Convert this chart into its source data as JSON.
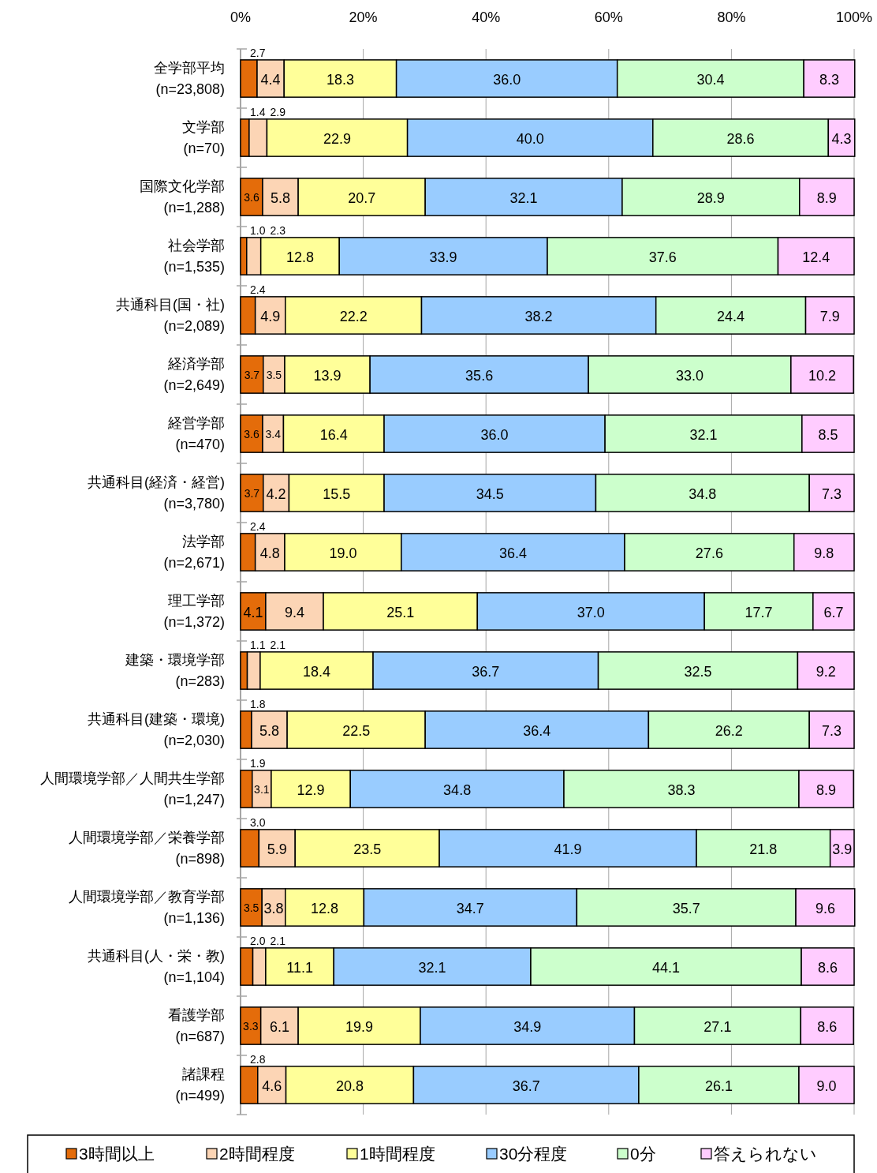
{
  "chart_data": {
    "type": "bar",
    "orientation": "horizontal",
    "stacked": true,
    "grid": "x",
    "legend": "bottom",
    "categories": [
      "全学部平均\n(n=23,808)",
      "文学部\n(n=70)",
      "国際文化学部\n(n=1,288)",
      "社会学部\n(n=1,535)",
      "共通科目(国・社)\n(n=2,089)",
      "経済学部\n(n=2,649)",
      "経営学部\n(n=470)",
      "共通科目(経済・経営)\n(n=3,780)",
      "法学部\n(n=2,671)",
      "理工学部\n(n=1,372)",
      "建築・環境学部\n(n=283)",
      "共通科目(建築・環境)\n(n=2,030)",
      "人間環境学部／人間共生学部\n(n=1,247)",
      "人間環境学部／栄養学部\n(n=898)",
      "人間環境学部／教育学部\n(n=1,136)",
      "共通科目(人・栄・教)\n(n=1,104)",
      "看護学部\n(n=687)",
      "諸課程\n(n=499)"
    ],
    "xlim": [
      0,
      100
    ],
    "xticks": [
      {
        "value": 0,
        "label": "0%"
      },
      {
        "value": 20,
        "label": "20%"
      },
      {
        "value": 40,
        "label": "40%"
      },
      {
        "value": 60,
        "label": "60%"
      },
      {
        "value": 80,
        "label": "80%"
      },
      {
        "value": 100,
        "label": "100%"
      }
    ],
    "series": [
      {
        "name": "3時間以上",
        "color": "#e46c0a",
        "values": [
          2.7,
          1.4,
          3.6,
          1.0,
          2.4,
          3.7,
          3.6,
          3.7,
          2.4,
          4.1,
          1.1,
          1.8,
          1.9,
          3.0,
          3.5,
          2.0,
          3.3,
          2.8
        ],
        "value_labels": [
          "2.7",
          "1.4",
          "3.6",
          "1.0",
          "2.4",
          "3.7",
          "3.6",
          "3.7",
          "2.4",
          "4.1",
          "1.1",
          "1.8",
          "1.9",
          "3.0",
          "3.5",
          "2.0",
          "3.3",
          "2.8"
        ]
      },
      {
        "name": "2時間程度",
        "color": "#fcd5b5",
        "values": [
          4.4,
          2.9,
          5.8,
          2.3,
          4.9,
          3.5,
          3.4,
          4.2,
          4.8,
          9.4,
          2.1,
          5.8,
          3.1,
          5.9,
          3.8,
          2.1,
          6.1,
          4.6
        ],
        "value_labels": [
          "4.4",
          "2.9",
          "5.8",
          "2.3",
          "4.9",
          "3.5",
          "3.4",
          "4.2",
          "4.8",
          "9.4",
          "2.1",
          "5.8",
          "3.1",
          "5.9",
          "3.8",
          "2.1",
          "6.1",
          "4.6"
        ]
      },
      {
        "name": "1時間程度",
        "color": "#ffff99",
        "values": [
          18.3,
          22.9,
          20.7,
          12.8,
          22.2,
          13.9,
          16.4,
          15.5,
          19.0,
          25.1,
          18.4,
          22.5,
          12.9,
          23.5,
          12.8,
          11.1,
          19.9,
          20.8
        ],
        "value_labels": [
          "18.3",
          "22.9",
          "20.7",
          "12.8",
          "22.2",
          "13.9",
          "16.4",
          "15.5",
          "19.0",
          "25.1",
          "18.4",
          "22.5",
          "12.9",
          "23.5",
          "12.8",
          "11.1",
          "19.9",
          "20.8"
        ]
      },
      {
        "name": "30分程度",
        "color": "#99ccff",
        "values": [
          36.0,
          40.0,
          32.1,
          33.9,
          38.2,
          35.6,
          36.0,
          34.5,
          36.4,
          37.0,
          36.7,
          36.4,
          34.8,
          41.9,
          34.7,
          32.1,
          34.9,
          36.7
        ],
        "value_labels": [
          "36.0",
          "40.0",
          "32.1",
          "33.9",
          "38.2",
          "35.6",
          "36.0",
          "34.5",
          "36.4",
          "37.0",
          "36.7",
          "36.4",
          "34.8",
          "41.9",
          "34.7",
          "32.1",
          "34.9",
          "36.7"
        ]
      },
      {
        "name": "0分",
        "color": "#ccffcc",
        "values": [
          30.4,
          28.6,
          28.9,
          37.6,
          24.4,
          33.0,
          32.1,
          34.8,
          27.6,
          17.7,
          32.5,
          26.2,
          38.3,
          21.8,
          35.7,
          44.1,
          27.1,
          26.1
        ],
        "value_labels": [
          "30.4",
          "28.6",
          "28.9",
          "37.6",
          "24.4",
          "33.0",
          "32.1",
          "34.8",
          "27.6",
          "17.7",
          "32.5",
          "26.2",
          "38.3",
          "21.8",
          "35.7",
          "44.1",
          "27.1",
          "26.1"
        ]
      },
      {
        "name": "答えられない",
        "color": "#ffccff",
        "values": [
          8.3,
          4.3,
          8.9,
          12.4,
          7.9,
          10.2,
          8.5,
          7.3,
          9.8,
          6.7,
          9.2,
          7.3,
          8.9,
          3.9,
          9.6,
          8.6,
          8.6,
          9.0
        ],
        "value_labels": [
          "8.3",
          "4.3",
          "8.9",
          "12.4",
          "7.9",
          "10.2",
          "8.5",
          "7.3",
          "9.8",
          "6.7",
          "9.2",
          "7.3",
          "8.9",
          "3.9",
          "9.6",
          "8.6",
          "8.6",
          "9.0"
        ]
      }
    ]
  }
}
